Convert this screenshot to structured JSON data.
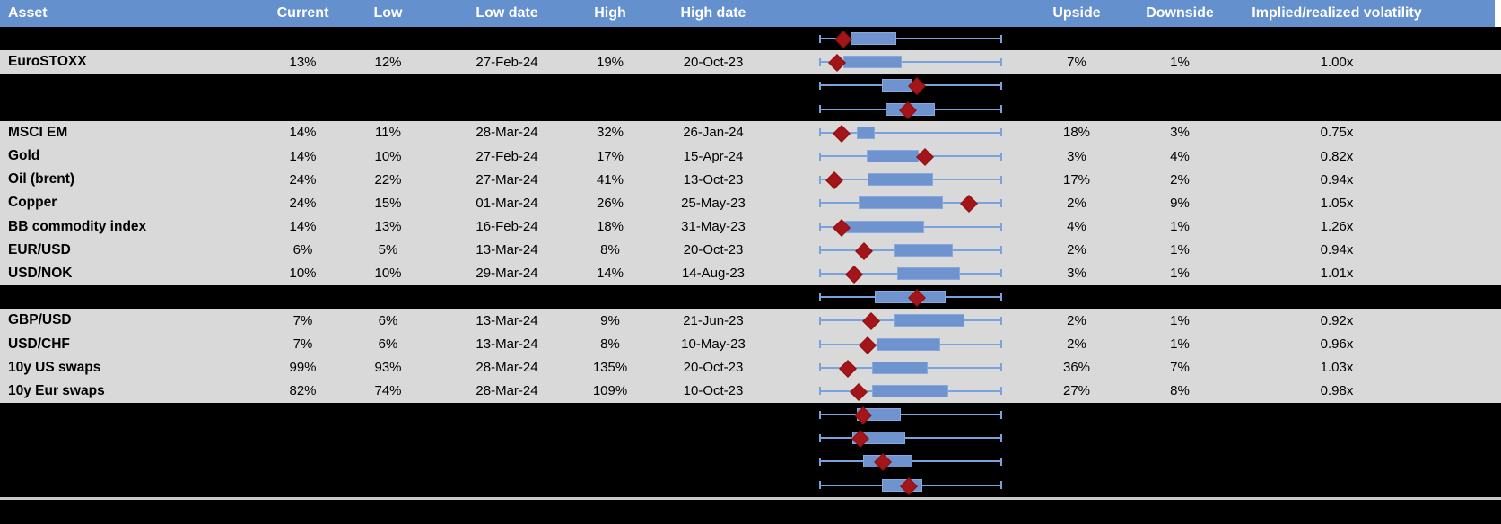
{
  "header": {
    "asset": "Asset",
    "current": "Current",
    "low": "Low",
    "low_date": "Low date",
    "high": "High",
    "high_date": "High date",
    "chart": "",
    "upside": "Upside",
    "downside": "Downside",
    "implied": "Implied/realized volatility"
  },
  "colors": {
    "header_bg": "#6490CD",
    "row_light": "#D9D9D9",
    "row_dark": "#000000",
    "box_fill": "#6E93CE",
    "whisker_blue": "#79A3DD",
    "marker_red": "#A31518",
    "bottom_line_gray": "#C9C9C9"
  },
  "chart_data": {
    "type": "table",
    "note": "Implied volatility table with inline box-whisker charts; whiskers span low-high range, red diamond = current level. Box/marker positions are percent of whisker span.",
    "columns": [
      "Asset",
      "Current",
      "Low",
      "Low date",
      "High",
      "High date",
      "Range chart",
      "Upside",
      "Downside",
      "Implied/realized volatility"
    ],
    "rows_named": [
      {
        "asset": "EuroSTOXX",
        "current": "13%",
        "low": "12%",
        "low_date": "27-Feb-24",
        "high": "19%",
        "high_date": "20-Oct-23",
        "upside": "7%",
        "downside": "1%",
        "implied": "1.00x"
      },
      {
        "asset": "MSCI EM",
        "current": "14%",
        "low": "11%",
        "low_date": "28-Mar-24",
        "high": "32%",
        "high_date": "26-Jan-24",
        "upside": "18%",
        "downside": "3%",
        "implied": "0.75x"
      },
      {
        "asset": "Gold",
        "current": "14%",
        "low": "10%",
        "low_date": "27-Feb-24",
        "high": "17%",
        "high_date": "15-Apr-24",
        "upside": "3%",
        "downside": "4%",
        "implied": "0.82x"
      },
      {
        "asset": "Oil (brent)",
        "current": "24%",
        "low": "22%",
        "low_date": "27-Mar-24",
        "high": "41%",
        "high_date": "13-Oct-23",
        "upside": "17%",
        "downside": "2%",
        "implied": "0.94x"
      },
      {
        "asset": "Copper",
        "current": "24%",
        "low": "15%",
        "low_date": "01-Mar-24",
        "high": "26%",
        "high_date": "25-May-23",
        "upside": "2%",
        "downside": "9%",
        "implied": "1.05x"
      },
      {
        "asset": "BB commodity index",
        "current": "14%",
        "low": "13%",
        "low_date": "16-Feb-24",
        "high": "18%",
        "high_date": "31-May-23",
        "upside": "4%",
        "downside": "1%",
        "implied": "1.26x"
      },
      {
        "asset": "EUR/USD",
        "current": "6%",
        "low": "5%",
        "low_date": "13-Mar-24",
        "high": "8%",
        "high_date": "20-Oct-23",
        "upside": "2%",
        "downside": "1%",
        "implied": "0.94x"
      },
      {
        "asset": "USD/NOK",
        "current": "10%",
        "low": "10%",
        "low_date": "29-Mar-24",
        "high": "14%",
        "high_date": "14-Aug-23",
        "upside": "3%",
        "downside": "1%",
        "implied": "1.01x"
      },
      {
        "asset": "GBP/USD",
        "current": "7%",
        "low": "6%",
        "low_date": "13-Mar-24",
        "high": "9%",
        "high_date": "21-Jun-23",
        "upside": "2%",
        "downside": "1%",
        "implied": "0.92x"
      },
      {
        "asset": "USD/CHF",
        "current": "7%",
        "low": "6%",
        "low_date": "13-Mar-24",
        "high": "8%",
        "high_date": "10-May-23",
        "upside": "2%",
        "downside": "1%",
        "implied": "0.96x"
      },
      {
        "asset": "10y US swaps",
        "current": "99%",
        "low": "93%",
        "low_date": "28-Mar-24",
        "high": "135%",
        "high_date": "20-Oct-23",
        "upside": "36%",
        "downside": "7%",
        "implied": "1.03x"
      },
      {
        "asset": "10y Eur swaps",
        "current": "82%",
        "low": "74%",
        "low_date": "28-Mar-24",
        "high": "109%",
        "high_date": "10-Oct-23",
        "upside": "27%",
        "downside": "8%",
        "implied": "0.98x"
      }
    ]
  },
  "rows": [
    {
      "asset": "",
      "current": "",
      "low": "",
      "low_date": "",
      "high": "",
      "high_date": "",
      "upside": "",
      "downside": "",
      "implied": "",
      "shade": "dark",
      "boxplot": {
        "box_start": 17.2,
        "box_end": 41.2,
        "marker": 13.2
      }
    },
    {
      "asset": "EuroSTOXX",
      "current": "13%",
      "low": "12%",
      "low_date": "27-Feb-24",
      "high": "19%",
      "high_date": "20-Oct-23",
      "upside": "7%",
      "downside": "1%",
      "implied": "1.00x",
      "shade": "light",
      "boxplot": {
        "box_start": 13.2,
        "box_end": 44.1,
        "marker": 9.8
      }
    },
    {
      "asset": "",
      "current": "",
      "low": "",
      "low_date": "",
      "high": "",
      "high_date": "",
      "upside": "",
      "downside": "",
      "implied": "",
      "shade": "dark",
      "boxplot": {
        "box_start": 34.3,
        "box_end": 50.0,
        "marker": 53.4
      }
    },
    {
      "asset": "",
      "current": "",
      "low": "",
      "low_date": "",
      "high": "",
      "high_date": "",
      "upside": "",
      "downside": "",
      "implied": "",
      "shade": "dark",
      "boxplot": {
        "box_start": 36.3,
        "box_end": 62.3,
        "marker": 48.5
      }
    },
    {
      "asset": "MSCI EM",
      "current": "14%",
      "low": "11%",
      "low_date": "28-Mar-24",
      "high": "32%",
      "high_date": "26-Jan-24",
      "upside": "18%",
      "downside": "3%",
      "implied": "0.75x",
      "shade": "light",
      "boxplot": {
        "box_start": 20.6,
        "box_end": 29.4,
        "marker": 12.3
      }
    },
    {
      "asset": "Gold",
      "current": "14%",
      "low": "10%",
      "low_date": "27-Feb-24",
      "high": "17%",
      "high_date": "15-Apr-24",
      "upside": "3%",
      "downside": "4%",
      "implied": "0.82x",
      "shade": "light",
      "boxplot": {
        "box_start": 26.0,
        "box_end": 53.4,
        "marker": 57.8
      }
    },
    {
      "asset": "Oil (brent)",
      "current": "24%",
      "low": "22%",
      "low_date": "27-Mar-24",
      "high": "41%",
      "high_date": "13-Oct-23",
      "upside": "17%",
      "downside": "2%",
      "implied": "0.94x",
      "shade": "light",
      "boxplot": {
        "box_start": 26.5,
        "box_end": 61.3,
        "marker": 8.3
      }
    },
    {
      "asset": "Copper",
      "current": "24%",
      "low": "15%",
      "low_date": "01-Mar-24",
      "high": "26%",
      "high_date": "25-May-23",
      "upside": "2%",
      "downside": "9%",
      "implied": "1.05x",
      "shade": "light",
      "boxplot": {
        "box_start": 21.6,
        "box_end": 66.7,
        "marker": 81.9
      }
    },
    {
      "asset": "BB commodity index",
      "current": "14%",
      "low": "13%",
      "low_date": "16-Feb-24",
      "high": "18%",
      "high_date": "31-May-23",
      "upside": "4%",
      "downside": "1%",
      "implied": "1.26x",
      "shade": "light",
      "boxplot": {
        "box_start": 13.2,
        "box_end": 56.4,
        "marker": 12.3
      }
    },
    {
      "asset": "EUR/USD",
      "current": "6%",
      "low": "5%",
      "low_date": "13-Mar-24",
      "high": "8%",
      "high_date": "20-Oct-23",
      "upside": "2%",
      "downside": "1%",
      "implied": "0.94x",
      "shade": "light",
      "boxplot": {
        "box_start": 41.2,
        "box_end": 72.1,
        "marker": 24.5
      }
    },
    {
      "asset": "USD/NOK",
      "current": "10%",
      "low": "10%",
      "low_date": "29-Mar-24",
      "high": "14%",
      "high_date": "14-Aug-23",
      "upside": "3%",
      "downside": "1%",
      "implied": "1.01x",
      "shade": "light",
      "boxplot": {
        "box_start": 42.6,
        "box_end": 76.0,
        "marker": 19.1
      }
    },
    {
      "asset": "",
      "current": "",
      "low": "",
      "low_date": "",
      "high": "",
      "high_date": "",
      "upside": "",
      "downside": "",
      "implied": "",
      "shade": "dark",
      "boxplot": {
        "box_start": 30.4,
        "box_end": 68.1,
        "marker": 53.4
      }
    },
    {
      "asset": "GBP/USD",
      "current": "7%",
      "low": "6%",
      "low_date": "13-Mar-24",
      "high": "9%",
      "high_date": "21-Jun-23",
      "upside": "2%",
      "downside": "1%",
      "implied": "0.92x",
      "shade": "light",
      "boxplot": {
        "box_start": 41.2,
        "box_end": 78.4,
        "marker": 28.4
      }
    },
    {
      "asset": "USD/CHF",
      "current": "7%",
      "low": "6%",
      "low_date": "13-Mar-24",
      "high": "8%",
      "high_date": "10-May-23",
      "upside": "2%",
      "downside": "1%",
      "implied": "0.96x",
      "shade": "light",
      "boxplot": {
        "box_start": 31.4,
        "box_end": 65.2,
        "marker": 26.5
      }
    },
    {
      "asset": "10y US swaps",
      "current": "99%",
      "low": "93%",
      "low_date": "28-Mar-24",
      "high": "135%",
      "high_date": "20-Oct-23",
      "upside": "36%",
      "downside": "7%",
      "implied": "1.03x",
      "shade": "light",
      "boxplot": {
        "box_start": 28.9,
        "box_end": 58.3,
        "marker": 15.7
      }
    },
    {
      "asset": "10y Eur swaps",
      "current": "82%",
      "low": "74%",
      "low_date": "28-Mar-24",
      "high": "109%",
      "high_date": "10-Oct-23",
      "upside": "27%",
      "downside": "8%",
      "implied": "0.98x",
      "shade": "light",
      "boxplot": {
        "box_start": 28.9,
        "box_end": 69.6,
        "marker": 21.6
      }
    },
    {
      "asset": "",
      "current": "",
      "low": "",
      "low_date": "",
      "high": "",
      "high_date": "",
      "upside": "",
      "downside": "",
      "implied": "",
      "shade": "dark",
      "boxplot": {
        "box_start": 20.6,
        "box_end": 43.6,
        "marker": 24.0
      }
    },
    {
      "asset": "",
      "current": "",
      "low": "",
      "low_date": "",
      "high": "",
      "high_date": "",
      "upside": "",
      "downside": "",
      "implied": "",
      "shade": "dark",
      "boxplot": {
        "box_start": 18.1,
        "box_end": 46.1,
        "marker": 22.5
      }
    },
    {
      "asset": "",
      "current": "",
      "low": "",
      "low_date": "",
      "high": "",
      "high_date": "",
      "upside": "",
      "downside": "",
      "implied": "",
      "shade": "dark",
      "boxplot": {
        "box_start": 24.0,
        "box_end": 50.0,
        "marker": 34.8
      }
    },
    {
      "asset": "",
      "current": "",
      "low": "",
      "low_date": "",
      "high": "",
      "high_date": "",
      "upside": "",
      "downside": "",
      "implied": "",
      "shade": "dark",
      "boxplot": {
        "box_start": 34.3,
        "box_end": 55.4,
        "marker": 49.0
      }
    }
  ]
}
